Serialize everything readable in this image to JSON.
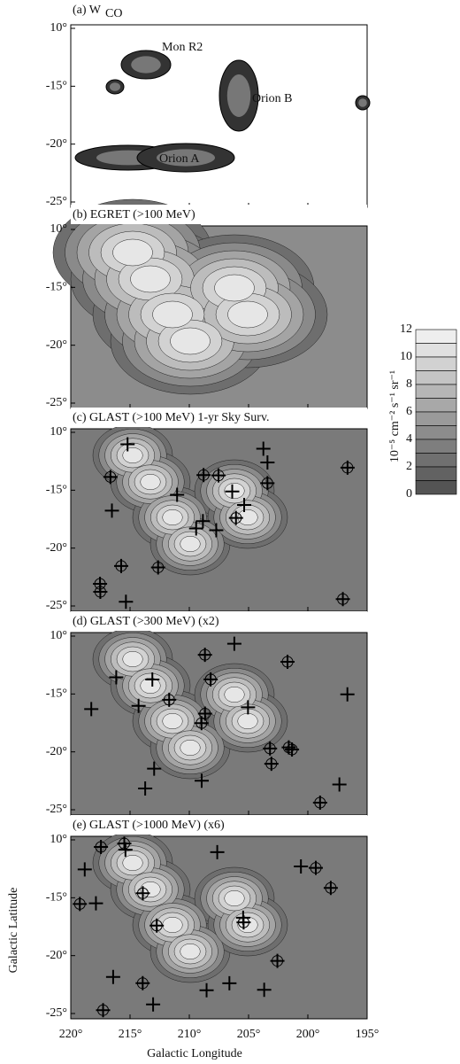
{
  "panels": [
    {
      "title": "(a) W",
      "title_sub": "CO",
      "labels": [
        "Mon R2",
        "Orion B",
        "Orion A"
      ]
    },
    {
      "title": "(b) EGRET (>100 MeV)"
    },
    {
      "title": "(c) GLAST (>100 MeV) 1-yr Sky Surv."
    },
    {
      "title": "(d) GLAST (>300 MeV) (x2)"
    },
    {
      "title": "(e) GLAST (>1000 MeV) (x6)"
    }
  ],
  "y_ticks": [
    "10°",
    "-15°",
    "-20°",
    "-25°"
  ],
  "x_ticks": [
    "220°",
    "215°",
    "210°",
    "205°",
    "200°",
    "195°"
  ],
  "x_label": "Galactic Longitude",
  "y_label": "Galactic Latitude",
  "colorbar": {
    "ticks": [
      "12",
      "10",
      "8",
      "6",
      "4",
      "2",
      "0"
    ],
    "label": "10⁻⁵ cm⁻² s⁻¹ sr⁻¹"
  }
}
